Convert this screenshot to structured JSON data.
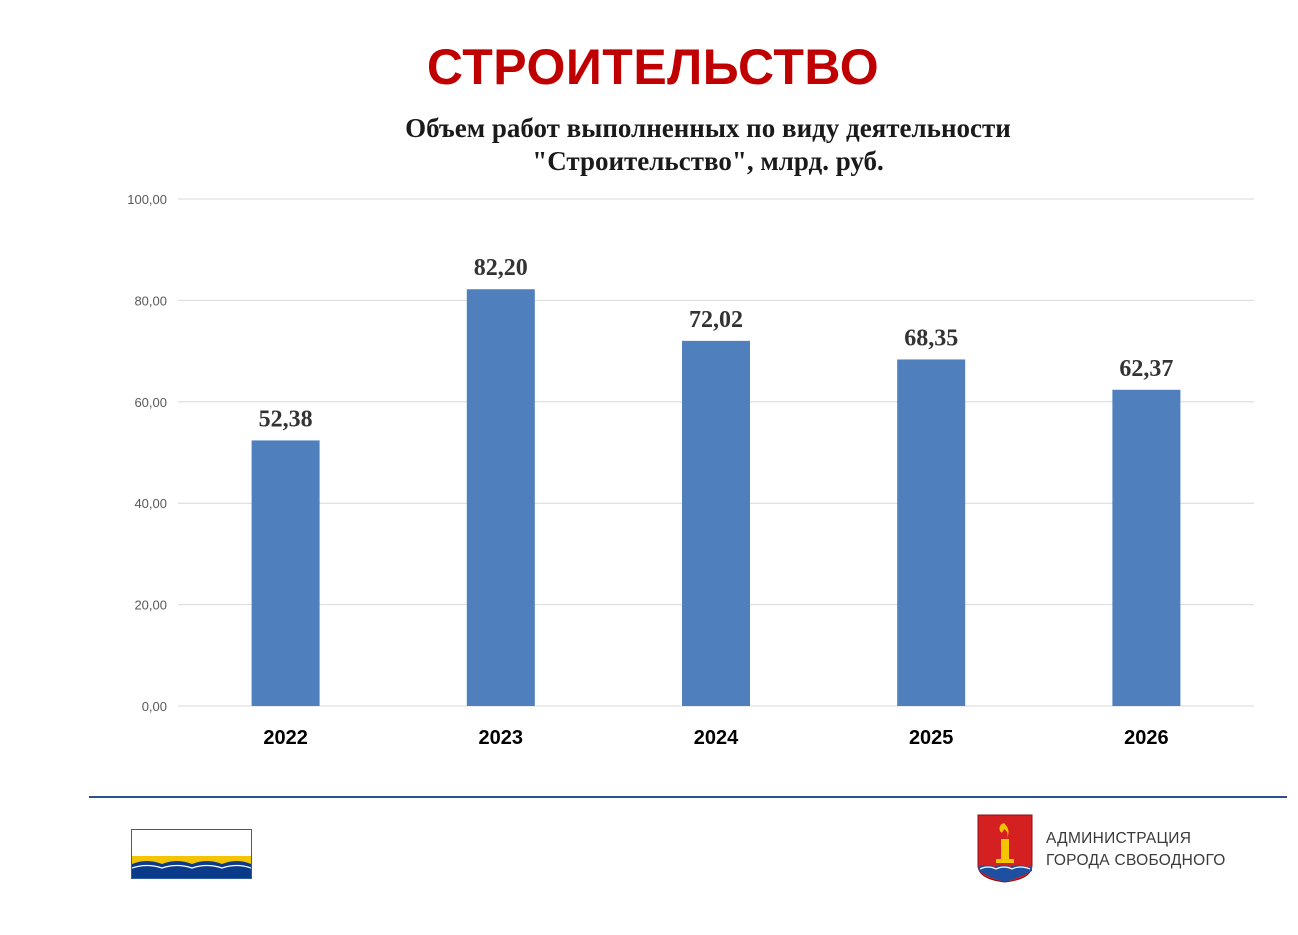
{
  "page": {
    "heading": "СТРОИТЕЛЬСТВО",
    "title_color": "#c00000"
  },
  "chart_data": {
    "type": "bar",
    "title": "Объем работ выполненных по виду деятельности \"Строительство\", млрд. руб.",
    "title_lines": [
      "Объем работ выполненных по виду деятельности",
      "\"Строительство\", млрд. руб."
    ],
    "categories": [
      "2022",
      "2023",
      "2024",
      "2025",
      "2026"
    ],
    "values": [
      52.38,
      82.2,
      72.02,
      68.35,
      62.37
    ],
    "value_labels": [
      "52,38",
      "82,20",
      "72,02",
      "68,35",
      "62,37"
    ],
    "y_ticks": [
      0,
      20,
      40,
      60,
      80,
      100
    ],
    "y_tick_labels": [
      "0,00",
      "20,00",
      "40,00",
      "60,00",
      "80,00",
      "100,00"
    ],
    "ylim": [
      0,
      100
    ],
    "xlabel": "",
    "ylabel": "",
    "grid": true,
    "legend": "none",
    "bar_color": "#4f7fbc"
  },
  "footer": {
    "admin_lines": [
      "АДМИНИСТРАЦИЯ",
      "ГОРОДА СВОБОДНОГО"
    ],
    "flag_icon": "city-flag-icon",
    "coat_icon": "coat-of-arms-icon",
    "rule_color": "#2f4f8a"
  }
}
